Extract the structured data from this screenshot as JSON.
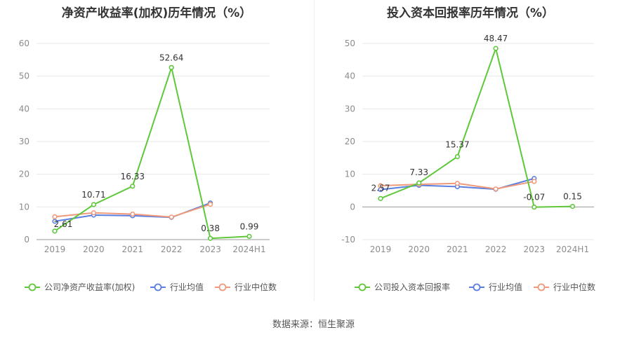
{
  "source_text": "数据来源：恒生聚源",
  "chart_data": [
    {
      "type": "line",
      "title": "净资产收益率(加权)历年情况（%）",
      "categories": [
        "2019",
        "2020",
        "2021",
        "2022",
        "2023",
        "2024H1"
      ],
      "ylim": [
        0,
        60
      ],
      "yticks": [
        0,
        10,
        20,
        30,
        40,
        50,
        60
      ],
      "grid": true,
      "legend_position": "bottom",
      "series": [
        {
          "name": "公司净资产收益率(加权)",
          "color": "#5ec83a",
          "values": [
            2.61,
            10.71,
            16.33,
            52.64,
            0.38,
            0.99
          ],
          "labels": [
            "2.61",
            "10.71",
            "16.33",
            "52.64",
            "0.38",
            "0.99"
          ]
        },
        {
          "name": "行业均值",
          "color": "#5b7fe0",
          "values": [
            5.6,
            7.5,
            7.3,
            6.8,
            11.2,
            null
          ]
        },
        {
          "name": "行业中位数",
          "color": "#f09a7b",
          "values": [
            7.0,
            8.2,
            7.8,
            6.9,
            10.8,
            null
          ]
        }
      ]
    },
    {
      "type": "line",
      "title": "投入资本回报率历年情况（%）",
      "categories": [
        "2019",
        "2020",
        "2021",
        "2022",
        "2023",
        "2024H1"
      ],
      "ylim": [
        -10,
        50
      ],
      "yticks": [
        -10,
        0,
        10,
        20,
        30,
        40,
        50
      ],
      "grid": true,
      "legend_position": "bottom",
      "series": [
        {
          "name": "公司投入资本回报率",
          "color": "#5ec83a",
          "values": [
            2.57,
            7.33,
            15.37,
            48.47,
            -0.07,
            0.15
          ],
          "labels": [
            "2.57",
            "7.33",
            "15.37",
            "48.47",
            "-0.07",
            "0.15"
          ]
        },
        {
          "name": "行业均值",
          "color": "#5b7fe0",
          "values": [
            5.3,
            6.6,
            6.2,
            5.4,
            8.7,
            null
          ]
        },
        {
          "name": "行业中位数",
          "color": "#f09a7b",
          "values": [
            6.5,
            6.9,
            7.2,
            5.5,
            7.8,
            null
          ]
        }
      ]
    }
  ]
}
